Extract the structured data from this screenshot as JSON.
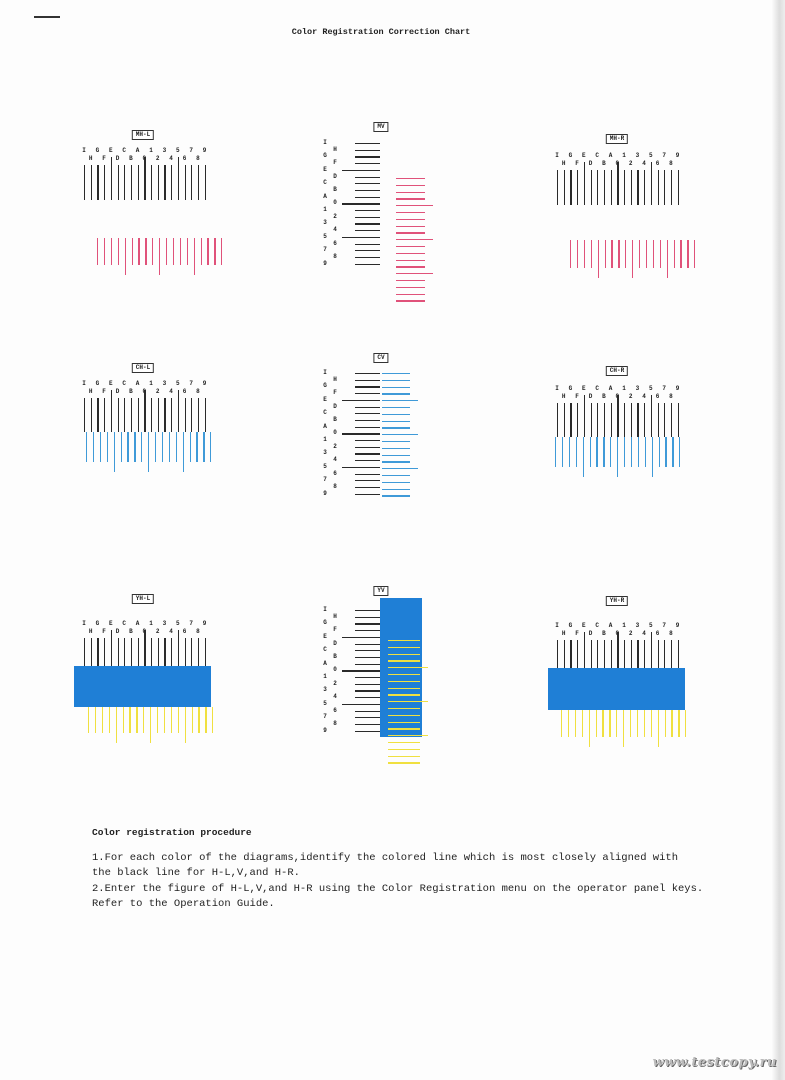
{
  "title": "Color Registration Correction Chart",
  "scale_labels": {
    "top": [
      "I",
      "G",
      "E",
      "C",
      "A",
      "1",
      "3",
      "5",
      "7",
      "9"
    ],
    "bottom": [
      "H",
      "F",
      "D",
      "B",
      "0",
      "2",
      "4",
      "6",
      "8"
    ],
    "sequence": [
      "I",
      "H",
      "G",
      "F",
      "E",
      "D",
      "C",
      "B",
      "A",
      "0",
      "1",
      "2",
      "3",
      "4",
      "5",
      "6",
      "7",
      "8",
      "9"
    ]
  },
  "colors": {
    "black": "#2a2a2a",
    "magenta": "#e0527a",
    "cyan": "#3f9ad8",
    "yellow": "#f0e040",
    "blue_overlay": "#1f7fd6"
  },
  "diagrams": [
    {
      "label": "MH-L",
      "orientation": "horizontal",
      "color": "magenta"
    },
    {
      "label": "MV",
      "orientation": "vertical",
      "color": "magenta"
    },
    {
      "label": "MH-R",
      "orientation": "horizontal",
      "color": "magenta"
    },
    {
      "label": "CH-L",
      "orientation": "horizontal",
      "color": "cyan"
    },
    {
      "label": "CV",
      "orientation": "vertical",
      "color": "cyan"
    },
    {
      "label": "CH-R",
      "orientation": "horizontal",
      "color": "cyan"
    },
    {
      "label": "YH-L",
      "orientation": "horizontal",
      "color": "yellow"
    },
    {
      "label": "YV",
      "orientation": "vertical",
      "color": "yellow"
    },
    {
      "label": "YH-R",
      "orientation": "horizontal",
      "color": "yellow"
    }
  ],
  "procedure": {
    "heading": "Color registration procedure",
    "lines": [
      "1.For each color of the diagrams,identify the colored line which is most closely aligned with",
      "the black line for H-L,V,and H-R.",
      "2.Enter the figure of H-L,V,and H-R using the Color Registration menu on the operator panel keys.",
      "Refer to the Operation Guide."
    ]
  },
  "watermark": "www.testcopy.ru"
}
